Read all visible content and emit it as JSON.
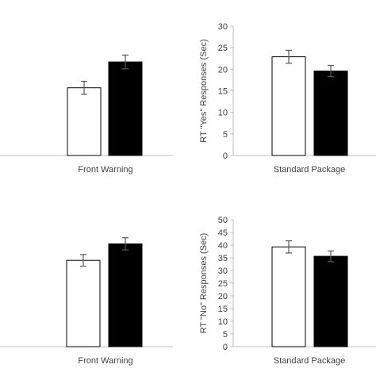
{
  "chart_data": [
    {
      "type": "bar",
      "categories": [
        "Front Warning"
      ],
      "series": [
        {
          "color": "#ffffff",
          "values": [
            15.7
          ],
          "error": [
            1.5
          ]
        },
        {
          "color": "#000000",
          "values": [
            21.7
          ],
          "error": [
            1.6
          ]
        }
      ],
      "ylim": [
        0,
        30
      ],
      "ylabel": "",
      "yticks": [],
      "grid": false
    },
    {
      "type": "bar",
      "categories": [
        "Standard Package"
      ],
      "series": [
        {
          "color": "#ffffff",
          "values": [
            22.9
          ],
          "error": [
            1.5
          ]
        },
        {
          "color": "#000000",
          "values": [
            19.6
          ],
          "error": [
            1.3
          ]
        }
      ],
      "ylim": [
        0,
        30
      ],
      "ylabel": "RT \"Yes\" Responses (Sec)",
      "yticks": [
        "0",
        "5",
        "10",
        "15",
        "20",
        "25",
        "30"
      ],
      "grid": false
    },
    {
      "type": "bar",
      "categories": [
        "Front Warning"
      ],
      "series": [
        {
          "color": "#ffffff",
          "values": [
            34.0
          ],
          "error": [
            2.3
          ]
        },
        {
          "color": "#000000",
          "values": [
            40.5
          ],
          "error": [
            2.4
          ]
        }
      ],
      "ylim": [
        0,
        50
      ],
      "ylabel": "",
      "yticks": [],
      "grid": false
    },
    {
      "type": "bar",
      "categories": [
        "Standard Package"
      ],
      "series": [
        {
          "color": "#ffffff",
          "values": [
            39.3
          ],
          "error": [
            2.4
          ]
        },
        {
          "color": "#000000",
          "values": [
            35.6
          ],
          "error": [
            2.1
          ]
        }
      ],
      "ylim": [
        0,
        50
      ],
      "ylabel": "RT \"No\" Responses (Sec)",
      "yticks": [
        "0",
        "5",
        "10",
        "15",
        "20",
        "25",
        "30",
        "35",
        "40",
        "45",
        "50"
      ],
      "grid": false
    }
  ]
}
